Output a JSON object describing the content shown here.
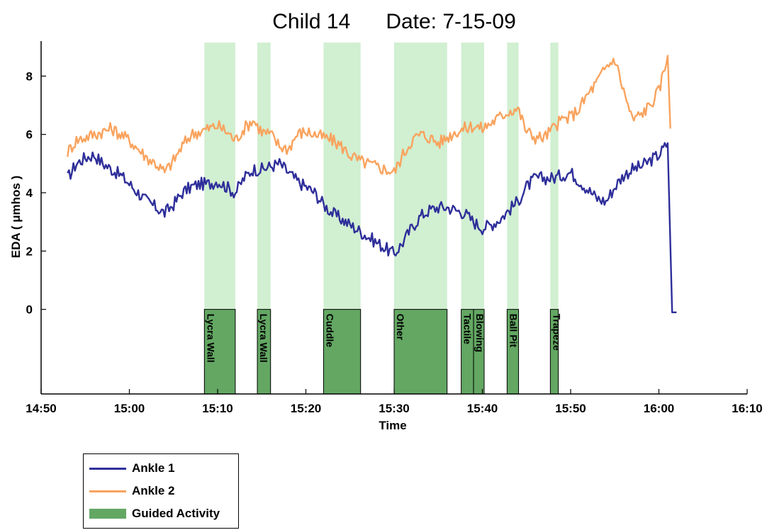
{
  "chart_data": {
    "type": "line",
    "title": "Child 14      Date: 7-15-09",
    "xlabel": "Time",
    "ylabel": "EDA ( μmhos )",
    "x_ticks": [
      "14:50",
      "15:00",
      "15:10",
      "15:20",
      "15:30",
      "15:40",
      "15:50",
      "16:00",
      "16:10"
    ],
    "y_ticks": [
      0,
      2,
      4,
      6,
      8
    ],
    "xlim": [
      "14:50",
      "16:10"
    ],
    "ylim": [
      -2.9,
      9.2
    ],
    "grid": false,
    "legend_position": "below-left",
    "series": [
      {
        "name": "Ankle 1",
        "color": "#2e2e9a",
        "points": [
          [
            "14:53",
            4.5
          ],
          [
            "14:54",
            5.0
          ],
          [
            "14:55",
            5.2
          ],
          [
            "14:56",
            5.3
          ],
          [
            "14:57",
            5.0
          ],
          [
            "14:58",
            4.8
          ],
          [
            "14:59",
            4.6
          ],
          [
            "15:00",
            4.3
          ],
          [
            "15:01",
            4.0
          ],
          [
            "15:02",
            3.7
          ],
          [
            "15:03",
            3.5
          ],
          [
            "15:04",
            3.3
          ],
          [
            "15:05",
            3.6
          ],
          [
            "15:06",
            4.0
          ],
          [
            "15:07",
            4.2
          ],
          [
            "15:08",
            4.3
          ],
          [
            "15:09",
            4.3
          ],
          [
            "15:10",
            4.4
          ],
          [
            "15:11",
            4.2
          ],
          [
            "15:12",
            4.0
          ],
          [
            "15:13",
            4.5
          ],
          [
            "15:14",
            4.8
          ],
          [
            "15:15",
            4.8
          ],
          [
            "15:16",
            4.9
          ],
          [
            "15:17",
            5.0
          ],
          [
            "15:18",
            4.7
          ],
          [
            "15:19",
            4.4
          ],
          [
            "15:20",
            4.2
          ],
          [
            "15:21",
            4.0
          ],
          [
            "15:22",
            3.6
          ],
          [
            "15:23",
            3.3
          ],
          [
            "15:24",
            3.1
          ],
          [
            "15:25",
            2.9
          ],
          [
            "15:26",
            2.7
          ],
          [
            "15:27",
            2.5
          ],
          [
            "15:28",
            2.3
          ],
          [
            "15:29",
            2.1
          ],
          [
            "15:30",
            1.9
          ],
          [
            "15:31",
            2.3
          ],
          [
            "15:32",
            2.8
          ],
          [
            "15:33",
            3.2
          ],
          [
            "15:34",
            3.4
          ],
          [
            "15:35",
            3.5
          ],
          [
            "15:36",
            3.5
          ],
          [
            "15:37",
            3.4
          ],
          [
            "15:38",
            3.3
          ],
          [
            "15:39",
            3.0
          ],
          [
            "15:40",
            2.8
          ],
          [
            "15:41",
            2.9
          ],
          [
            "15:42",
            3.1
          ],
          [
            "15:43",
            3.4
          ],
          [
            "15:44",
            3.7
          ],
          [
            "15:45",
            4.2
          ],
          [
            "15:46",
            4.5
          ],
          [
            "15:47",
            4.5
          ],
          [
            "15:48",
            4.5
          ],
          [
            "15:49",
            4.6
          ],
          [
            "15:50",
            4.7
          ],
          [
            "15:51",
            4.4
          ],
          [
            "15:52",
            4.1
          ],
          [
            "15:53",
            3.8
          ],
          [
            "15:54",
            3.7
          ],
          [
            "15:55",
            4.2
          ],
          [
            "15:56",
            4.6
          ],
          [
            "15:57",
            4.8
          ],
          [
            "15:58",
            4.9
          ],
          [
            "15:59",
            5.1
          ],
          [
            "16:00",
            5.3
          ],
          [
            "16:01",
            5.7
          ],
          [
            "16:01.5",
            -0.1
          ],
          [
            "16:02",
            -0.1
          ]
        ]
      },
      {
        "name": "Ankle 2",
        "color": "#f9a35e",
        "points": [
          [
            "14:53",
            5.4
          ],
          [
            "14:54",
            5.8
          ],
          [
            "14:55",
            5.9
          ],
          [
            "14:56",
            6.0
          ],
          [
            "14:57",
            6.1
          ],
          [
            "14:58",
            6.2
          ],
          [
            "14:59",
            6.0
          ],
          [
            "15:00",
            5.8
          ],
          [
            "15:01",
            5.5
          ],
          [
            "15:02",
            5.2
          ],
          [
            "15:03",
            5.0
          ],
          [
            "15:04",
            4.7
          ],
          [
            "15:05",
            5.1
          ],
          [
            "15:06",
            5.6
          ],
          [
            "15:07",
            6.0
          ],
          [
            "15:08",
            6.1
          ],
          [
            "15:09",
            6.2
          ],
          [
            "15:10",
            6.3
          ],
          [
            "15:11",
            6.1
          ],
          [
            "15:12",
            5.8
          ],
          [
            "15:13",
            6.2
          ],
          [
            "15:14",
            6.5
          ],
          [
            "15:15",
            6.1
          ],
          [
            "15:16",
            6.0
          ],
          [
            "15:17",
            5.6
          ],
          [
            "15:18",
            5.5
          ],
          [
            "15:19",
            6.0
          ],
          [
            "15:20",
            6.1
          ],
          [
            "15:21",
            6.0
          ],
          [
            "15:22",
            5.9
          ],
          [
            "15:23",
            5.8
          ],
          [
            "15:24",
            5.6
          ],
          [
            "15:25",
            5.3
          ],
          [
            "15:26",
            5.1
          ],
          [
            "15:27",
            5.0
          ],
          [
            "15:28",
            4.9
          ],
          [
            "15:29",
            4.8
          ],
          [
            "15:30",
            4.7
          ],
          [
            "15:31",
            5.3
          ],
          [
            "15:32",
            5.8
          ],
          [
            "15:33",
            6.0
          ],
          [
            "15:34",
            5.9
          ],
          [
            "15:35",
            5.7
          ],
          [
            "15:36",
            5.9
          ],
          [
            "15:37",
            6.1
          ],
          [
            "15:38",
            6.2
          ],
          [
            "15:39",
            6.3
          ],
          [
            "15:40",
            6.2
          ],
          [
            "15:41",
            6.4
          ],
          [
            "15:42",
            6.6
          ],
          [
            "15:43",
            6.8
          ],
          [
            "15:44",
            6.9
          ],
          [
            "15:45",
            6.1
          ],
          [
            "15:46",
            5.9
          ],
          [
            "15:47",
            5.9
          ],
          [
            "15:48",
            6.2
          ],
          [
            "15:49",
            6.5
          ],
          [
            "15:50",
            6.6
          ],
          [
            "15:51",
            6.9
          ],
          [
            "15:52",
            7.4
          ],
          [
            "15:53",
            7.8
          ],
          [
            "15:54",
            8.3
          ],
          [
            "15:55",
            8.6
          ],
          [
            "15:56",
            7.5
          ],
          [
            "15:57",
            6.5
          ],
          [
            "15:58",
            6.7
          ],
          [
            "15:59",
            7.0
          ],
          [
            "16:00",
            7.5
          ],
          [
            "16:01",
            8.7
          ],
          [
            "16:01.3",
            6.2
          ]
        ]
      }
    ],
    "activities_legend": "Guided Activity",
    "activities": [
      {
        "label": "Lycra Wall",
        "start": "15:08.5",
        "end": "15:12"
      },
      {
        "label": "Lycra Wall",
        "start": "15:14.5",
        "end": "15:16"
      },
      {
        "label": "Cuddle",
        "start": "15:22",
        "end": "15:26.2"
      },
      {
        "label": "Other",
        "start": "15:30",
        "end": "15:36"
      },
      {
        "label": "Tactile",
        "start": "15:37.6",
        "end": "15:39"
      },
      {
        "label": "Blowing",
        "start": "15:39",
        "end": "15:40.2"
      },
      {
        "label": "Ball Pit",
        "start": "15:42.8",
        "end": "15:44.1"
      },
      {
        "label": "Trapeze",
        "start": "15:47.7",
        "end": "15:48.6"
      }
    ],
    "colors": {
      "activity_fill": "#63a763",
      "activity_band": "#c9ecc9"
    }
  }
}
